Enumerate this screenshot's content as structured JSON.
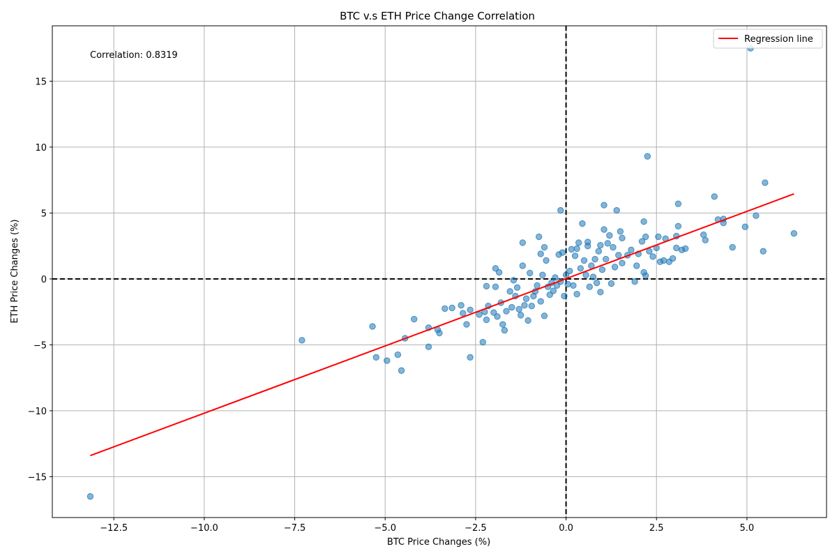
{
  "chart_data": {
    "type": "scatter",
    "title": "BTC v.s ETH Price Change Correlation",
    "xlabel": "BTC Price Changes (%)",
    "ylabel": "ETH Price Changes (%)",
    "xlim": [
      -14.2,
      7.2
    ],
    "ylim": [
      -18.1,
      19.2
    ],
    "xticks": [
      -12.5,
      -10.0,
      -7.5,
      -5.0,
      -2.5,
      0.0,
      2.5,
      5.0
    ],
    "xtick_labels": [
      "−12.5",
      "−10.0",
      "−7.5",
      "−5.0",
      "−2.5",
      "0.0",
      "2.5",
      "5.0"
    ],
    "yticks": [
      -15,
      -10,
      -5,
      0,
      5,
      10,
      15
    ],
    "ytick_labels": [
      "−15",
      "−10",
      "−5",
      "0",
      "5",
      "10",
      "15"
    ],
    "grid": true,
    "legend_position": "top-right",
    "annotation": "Correlation: 0.8319",
    "colors": {
      "points": "#1f77b4",
      "regression": "#ff0000",
      "zero_lines": "#000000",
      "grid": "#b0b0b0"
    },
    "regression": {
      "name": "Regression line",
      "x": [
        -13.15,
        6.3
      ],
      "y": [
        -13.4,
        6.45
      ]
    },
    "zero_lines": {
      "x": 0,
      "y": 0
    },
    "series": [
      {
        "name": "",
        "points": [
          [
            -13.15,
            -16.5
          ],
          [
            -7.3,
            -4.65
          ],
          [
            -5.35,
            -3.6
          ],
          [
            -5.25,
            -5.95
          ],
          [
            -4.95,
            -6.2
          ],
          [
            -4.65,
            -5.75
          ],
          [
            -4.55,
            -6.95
          ],
          [
            -4.45,
            -4.5
          ],
          [
            -4.2,
            -3.05
          ],
          [
            -3.8,
            -3.7
          ],
          [
            -3.8,
            -5.15
          ],
          [
            -3.55,
            -3.85
          ],
          [
            -3.5,
            -4.1
          ],
          [
            -3.35,
            -2.25
          ],
          [
            -3.15,
            -2.2
          ],
          [
            -2.9,
            -2.0
          ],
          [
            -2.85,
            -2.6
          ],
          [
            -2.75,
            -3.45
          ],
          [
            -2.65,
            -2.35
          ],
          [
            -2.65,
            -5.95
          ],
          [
            -2.4,
            -2.7
          ],
          [
            -2.3,
            -4.8
          ],
          [
            -2.25,
            -2.5
          ],
          [
            -2.2,
            -0.55
          ],
          [
            -2.2,
            -3.1
          ],
          [
            -2.15,
            -2.05
          ],
          [
            -2.0,
            -2.55
          ],
          [
            -1.95,
            0.8
          ],
          [
            -1.95,
            -0.6
          ],
          [
            -1.9,
            -2.85
          ],
          [
            -1.85,
            0.5
          ],
          [
            -1.8,
            -1.8
          ],
          [
            -1.75,
            -3.45
          ],
          [
            -1.7,
            -3.9
          ],
          [
            -1.65,
            -2.45
          ],
          [
            -1.55,
            -0.95
          ],
          [
            -1.5,
            -2.15
          ],
          [
            -1.45,
            -0.1
          ],
          [
            -1.4,
            -1.3
          ],
          [
            -1.35,
            -0.65
          ],
          [
            -1.3,
            -2.3
          ],
          [
            -1.25,
            -2.75
          ],
          [
            -1.2,
            2.75
          ],
          [
            -1.2,
            1.0
          ],
          [
            -1.15,
            -2.0
          ],
          [
            -1.1,
            -1.5
          ],
          [
            -1.05,
            -3.15
          ],
          [
            -1.0,
            0.45
          ],
          [
            -0.95,
            -2.05
          ],
          [
            -0.9,
            -1.3
          ],
          [
            -0.85,
            -0.95
          ],
          [
            -0.8,
            -0.5
          ],
          [
            -0.75,
            3.2
          ],
          [
            -0.7,
            -1.7
          ],
          [
            -0.7,
            1.9
          ],
          [
            -0.65,
            0.3
          ],
          [
            -0.6,
            2.4
          ],
          [
            -0.6,
            -2.8
          ],
          [
            -0.55,
            1.4
          ],
          [
            -0.5,
            -0.6
          ],
          [
            -0.45,
            -1.2
          ],
          [
            -0.4,
            -0.3
          ],
          [
            -0.35,
            -0.9
          ],
          [
            -0.3,
            0.1
          ],
          [
            -0.25,
            -0.5
          ],
          [
            -0.2,
            1.85
          ],
          [
            -0.15,
            5.2
          ],
          [
            -0.15,
            -0.2
          ],
          [
            -0.1,
            2.0
          ],
          [
            -0.05,
            -1.3
          ],
          [
            0.0,
            0.3
          ],
          [
            0.05,
            -0.4
          ],
          [
            0.1,
            0.6
          ],
          [
            0.15,
            2.25
          ],
          [
            0.2,
            -0.5
          ],
          [
            0.25,
            1.75
          ],
          [
            0.3,
            2.3
          ],
          [
            0.3,
            -1.15
          ],
          [
            0.35,
            2.75
          ],
          [
            0.4,
            0.8
          ],
          [
            0.45,
            4.2
          ],
          [
            0.5,
            1.4
          ],
          [
            0.55,
            0.3
          ],
          [
            0.6,
            2.8
          ],
          [
            0.6,
            2.5
          ],
          [
            0.65,
            -0.6
          ],
          [
            0.7,
            1.0
          ],
          [
            0.75,
            0.15
          ],
          [
            0.8,
            1.5
          ],
          [
            0.85,
            -0.3
          ],
          [
            0.9,
            2.1
          ],
          [
            0.95,
            2.55
          ],
          [
            0.95,
            -1.0
          ],
          [
            1.0,
            0.7
          ],
          [
            1.05,
            3.75
          ],
          [
            1.05,
            5.6
          ],
          [
            1.1,
            1.5
          ],
          [
            1.15,
            2.7
          ],
          [
            1.2,
            3.3
          ],
          [
            1.25,
            -0.35
          ],
          [
            1.3,
            2.4
          ],
          [
            1.35,
            0.9
          ],
          [
            1.4,
            5.2
          ],
          [
            1.45,
            1.8
          ],
          [
            1.5,
            3.6
          ],
          [
            1.55,
            1.2
          ],
          [
            1.55,
            3.1
          ],
          [
            1.7,
            1.8
          ],
          [
            1.8,
            2.2
          ],
          [
            1.9,
            -0.2
          ],
          [
            1.95,
            1.0
          ],
          [
            2.0,
            1.9
          ],
          [
            2.1,
            2.85
          ],
          [
            2.15,
            4.35
          ],
          [
            2.15,
            0.5
          ],
          [
            2.2,
            3.2
          ],
          [
            2.2,
            0.25
          ],
          [
            2.25,
            9.3
          ],
          [
            2.3,
            2.1
          ],
          [
            2.4,
            1.7
          ],
          [
            2.5,
            2.35
          ],
          [
            2.55,
            3.2
          ],
          [
            2.6,
            1.3
          ],
          [
            2.7,
            1.4
          ],
          [
            2.75,
            3.05
          ],
          [
            2.85,
            1.3
          ],
          [
            2.95,
            1.55
          ],
          [
            3.05,
            2.35
          ],
          [
            3.05,
            3.25
          ],
          [
            3.1,
            4.0
          ],
          [
            3.1,
            5.7
          ],
          [
            3.2,
            2.2
          ],
          [
            3.3,
            2.3
          ],
          [
            3.8,
            3.35
          ],
          [
            3.85,
            2.95
          ],
          [
            4.1,
            6.25
          ],
          [
            4.2,
            4.5
          ],
          [
            4.35,
            4.25
          ],
          [
            4.35,
            4.55
          ],
          [
            4.6,
            2.4
          ],
          [
            4.95,
            3.95
          ],
          [
            5.1,
            17.5
          ],
          [
            5.25,
            4.8
          ],
          [
            5.45,
            2.1
          ],
          [
            5.5,
            7.3
          ],
          [
            6.3,
            3.45
          ]
        ]
      }
    ]
  }
}
